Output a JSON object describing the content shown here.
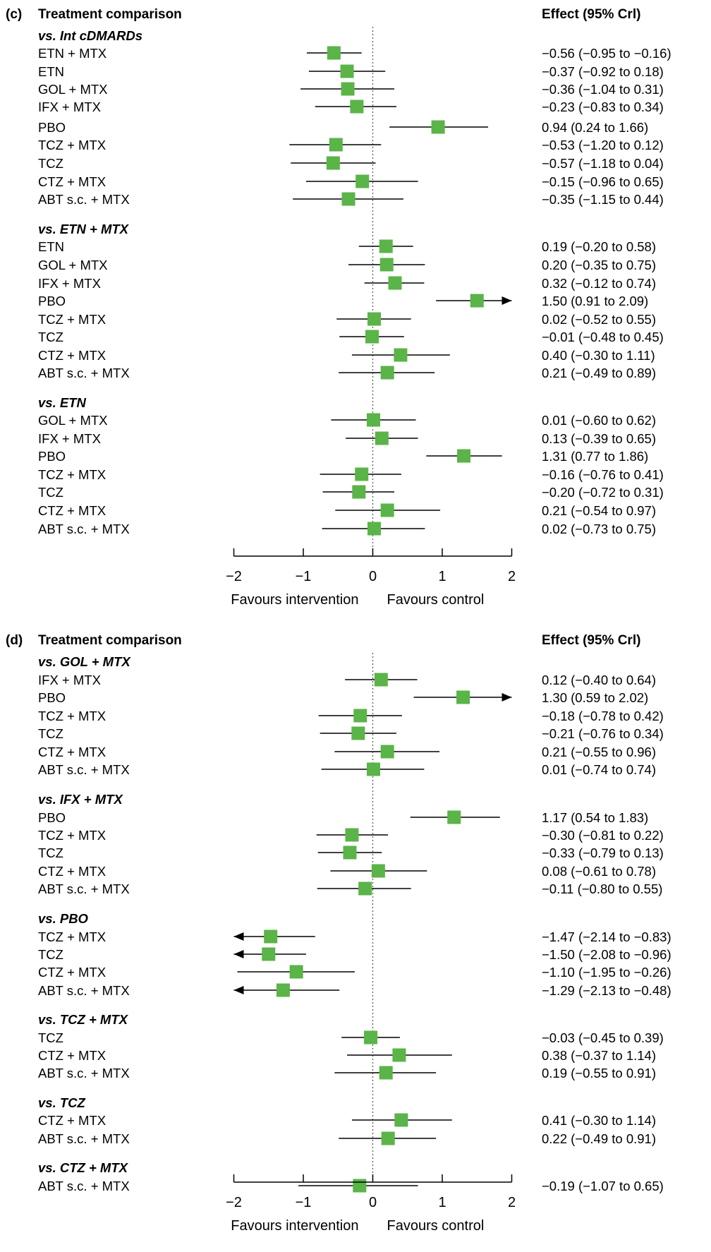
{
  "chart_data": [
    {
      "type": "forest",
      "panel_label": "(c)",
      "header_left": "Treatment comparison",
      "header_right": "Effect (95% Crl)",
      "xlim": [
        -2,
        2
      ],
      "ticks": [
        "−2",
        "−1",
        "0",
        "1",
        "2"
      ],
      "xlabel_left": "Favours intervention",
      "xlabel_right": "Favours control",
      "groups": [
        {
          "title": "vs. Int cDMARDs",
          "rows": [
            {
              "label": "ETN + MTX",
              "est": -0.56,
              "lo": -0.95,
              "hi": -0.16,
              "text": "−0.56 (−0.95 to −0.16)"
            },
            {
              "label": "ETN",
              "est": -0.37,
              "lo": -0.92,
              "hi": 0.18,
              "text": "−0.37 (−0.92 to 0.18)"
            },
            {
              "label": "GOL + MTX",
              "est": -0.36,
              "lo": -1.04,
              "hi": 0.31,
              "text": "−0.36 (−1.04 to 0.31)"
            },
            {
              "label": "IFX + MTX",
              "est": -0.23,
              "lo": -0.83,
              "hi": 0.34,
              "text": "−0.23 (−0.83 to 0.34)"
            },
            {
              "label": "PBO",
              "est": 0.94,
              "lo": 0.24,
              "hi": 1.66,
              "text": "0.94 (0.24 to 1.66)"
            },
            {
              "label": "TCZ + MTX",
              "est": -0.53,
              "lo": -1.2,
              "hi": 0.12,
              "text": "−0.53 (−1.20 to 0.12)"
            },
            {
              "label": "TCZ",
              "est": -0.57,
              "lo": -1.18,
              "hi": 0.04,
              "text": "−0.57 (−1.18 to 0.04)"
            },
            {
              "label": "CTZ + MTX",
              "est": -0.15,
              "lo": -0.96,
              "hi": 0.65,
              "text": "−0.15 (−0.96 to 0.65)"
            },
            {
              "label": "ABT s.c. + MTX",
              "est": -0.35,
              "lo": -1.15,
              "hi": 0.44,
              "text": "−0.35 (−1.15 to 0.44)"
            }
          ]
        },
        {
          "title": "vs. ETN + MTX",
          "rows": [
            {
              "label": "ETN",
              "est": 0.19,
              "lo": -0.2,
              "hi": 0.58,
              "text": "0.19 (−0.20 to 0.58)"
            },
            {
              "label": "GOL + MTX",
              "est": 0.2,
              "lo": -0.35,
              "hi": 0.75,
              "text": "0.20 (−0.35 to 0.75)"
            },
            {
              "label": "IFX + MTX",
              "est": 0.32,
              "lo": -0.12,
              "hi": 0.74,
              "text": "0.32 (−0.12 to 0.74)"
            },
            {
              "label": "PBO",
              "est": 1.5,
              "lo": 0.91,
              "hi": 2.09,
              "text": "1.50 (0.91 to 2.09)"
            },
            {
              "label": "TCZ + MTX",
              "est": 0.02,
              "lo": -0.52,
              "hi": 0.55,
              "text": "0.02 (−0.52 to 0.55)"
            },
            {
              "label": "TCZ",
              "est": -0.01,
              "lo": -0.48,
              "hi": 0.45,
              "text": "−0.01 (−0.48 to 0.45)"
            },
            {
              "label": "CTZ + MTX",
              "est": 0.4,
              "lo": -0.3,
              "hi": 1.11,
              "text": "0.40 (−0.30 to 1.11)"
            },
            {
              "label": "ABT s.c. + MTX",
              "est": 0.21,
              "lo": -0.49,
              "hi": 0.89,
              "text": "0.21 (−0.49 to 0.89)"
            }
          ]
        },
        {
          "title": "vs. ETN",
          "rows": [
            {
              "label": "GOL + MTX",
              "est": 0.01,
              "lo": -0.6,
              "hi": 0.62,
              "text": "0.01 (−0.60 to 0.62)"
            },
            {
              "label": "IFX + MTX",
              "est": 0.13,
              "lo": -0.39,
              "hi": 0.65,
              "text": "0.13 (−0.39 to 0.65)"
            },
            {
              "label": "PBO",
              "est": 1.31,
              "lo": 0.77,
              "hi": 1.86,
              "text": "1.31 (0.77 to 1.86)"
            },
            {
              "label": "TCZ + MTX",
              "est": -0.16,
              "lo": -0.76,
              "hi": 0.41,
              "text": "−0.16 (−0.76 to 0.41)"
            },
            {
              "label": "TCZ",
              "est": -0.2,
              "lo": -0.72,
              "hi": 0.31,
              "text": "−0.20 (−0.72 to 0.31)"
            },
            {
              "label": "CTZ + MTX",
              "est": 0.21,
              "lo": -0.54,
              "hi": 0.97,
              "text": "0.21 (−0.54 to 0.97)"
            },
            {
              "label": "ABT s.c. + MTX",
              "est": 0.02,
              "lo": -0.73,
              "hi": 0.75,
              "text": "0.02 (−0.73 to 0.75)"
            }
          ]
        }
      ]
    },
    {
      "type": "forest",
      "panel_label": "(d)",
      "header_left": "Treatment comparison",
      "header_right": "Effect (95% Crl)",
      "xlim": [
        -2,
        2
      ],
      "ticks": [
        "−2",
        "−1",
        "0",
        "1",
        "2"
      ],
      "xlabel_left": "Favours intervention",
      "xlabel_right": "Favours control",
      "groups": [
        {
          "title": "vs. GOL + MTX",
          "rows": [
            {
              "label": "IFX + MTX",
              "est": 0.12,
              "lo": -0.4,
              "hi": 0.64,
              "text": "0.12 (−0.40 to 0.64)"
            },
            {
              "label": "PBO",
              "est": 1.3,
              "lo": 0.59,
              "hi": 2.02,
              "text": "1.30 (0.59 to 2.02)"
            },
            {
              "label": "TCZ + MTX",
              "est": -0.18,
              "lo": -0.78,
              "hi": 0.42,
              "text": "−0.18 (−0.78 to 0.42)"
            },
            {
              "label": "TCZ",
              "est": -0.21,
              "lo": -0.76,
              "hi": 0.34,
              "text": "−0.21 (−0.76 to 0.34)"
            },
            {
              "label": "CTZ + MTX",
              "est": 0.21,
              "lo": -0.55,
              "hi": 0.96,
              "text": "0.21 (−0.55 to 0.96)"
            },
            {
              "label": "ABT s.c. + MTX",
              "est": 0.01,
              "lo": -0.74,
              "hi": 0.74,
              "text": "0.01 (−0.74 to 0.74)"
            }
          ]
        },
        {
          "title": "vs. IFX + MTX",
          "rows": [
            {
              "label": "PBO",
              "est": 1.17,
              "lo": 0.54,
              "hi": 1.83,
              "text": "1.17 (0.54 to 1.83)"
            },
            {
              "label": "TCZ + MTX",
              "est": -0.3,
              "lo": -0.81,
              "hi": 0.22,
              "text": "−0.30 (−0.81 to 0.22)"
            },
            {
              "label": "TCZ",
              "est": -0.33,
              "lo": -0.79,
              "hi": 0.13,
              "text": "−0.33 (−0.79 to 0.13)"
            },
            {
              "label": "CTZ + MTX",
              "est": 0.08,
              "lo": -0.61,
              "hi": 0.78,
              "text": "0.08 (−0.61 to 0.78)"
            },
            {
              "label": "ABT s.c. + MTX",
              "est": -0.11,
              "lo": -0.8,
              "hi": 0.55,
              "text": "−0.11 (−0.80 to 0.55)"
            }
          ]
        },
        {
          "title": "vs. PBO",
          "rows": [
            {
              "label": "TCZ + MTX",
              "est": -1.47,
              "lo": -2.14,
              "hi": -0.83,
              "text": "−1.47 (−2.14 to −0.83)"
            },
            {
              "label": "TCZ",
              "est": -1.5,
              "lo": -2.08,
              "hi": -0.96,
              "text": "−1.50 (−2.08 to −0.96)"
            },
            {
              "label": "CTZ + MTX",
              "est": -1.1,
              "lo": -1.95,
              "hi": -0.26,
              "text": "−1.10 (−1.95 to −0.26)"
            },
            {
              "label": "ABT s.c. + MTX",
              "est": -1.29,
              "lo": -2.13,
              "hi": -0.48,
              "text": "−1.29 (−2.13 to −0.48)"
            }
          ]
        },
        {
          "title": "vs. TCZ + MTX",
          "rows": [
            {
              "label": "TCZ",
              "est": -0.03,
              "lo": -0.45,
              "hi": 0.39,
              "text": "−0.03 (−0.45 to 0.39)"
            },
            {
              "label": "CTZ + MTX",
              "est": 0.38,
              "lo": -0.37,
              "hi": 1.14,
              "text": "0.38 (−0.37 to 1.14)"
            },
            {
              "label": "ABT s.c. + MTX",
              "est": 0.19,
              "lo": -0.55,
              "hi": 0.91,
              "text": "0.19 (−0.55 to 0.91)"
            }
          ]
        },
        {
          "title": "vs. TCZ",
          "rows": [
            {
              "label": "CTZ + MTX",
              "est": 0.41,
              "lo": -0.3,
              "hi": 1.14,
              "text": "0.41 (−0.30 to 1.14)"
            },
            {
              "label": "ABT s.c. + MTX",
              "est": 0.22,
              "lo": -0.49,
              "hi": 0.91,
              "text": "0.22 (−0.49 to 0.91)"
            }
          ]
        },
        {
          "title": "vs. CTZ + MTX",
          "rows": [
            {
              "label": "ABT s.c. + MTX",
              "est": -0.19,
              "lo": -1.07,
              "hi": 0.65,
              "text": "−0.19 (−1.07 to 0.65)"
            }
          ]
        }
      ]
    }
  ],
  "colors": {
    "marker": "#5ab448",
    "line": "#000000",
    "zero_line": "#555555"
  }
}
